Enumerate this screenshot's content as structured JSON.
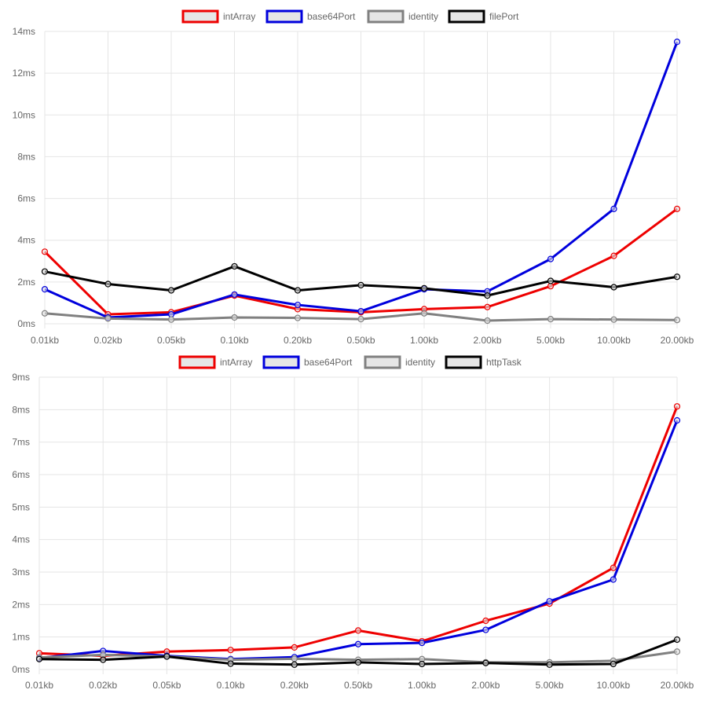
{
  "chart_data": [
    {
      "type": "line",
      "categories": [
        "0.01kb",
        "0.02kb",
        "0.05kb",
        "0.10kb",
        "0.20kb",
        "0.50kb",
        "1.00kb",
        "2.00kb",
        "5.00kb",
        "10.00kb",
        "20.00kb"
      ],
      "y_ticks": [
        "0ms",
        "2ms",
        "4ms",
        "6ms",
        "8ms",
        "10ms",
        "12ms",
        "14ms"
      ],
      "ylim": [
        0,
        14
      ],
      "grid": true,
      "legend_position": "top",
      "series": [
        {
          "name": "intArray",
          "color": "#ee0000",
          "values": [
            3.45,
            0.45,
            0.55,
            1.35,
            0.7,
            0.55,
            0.7,
            0.8,
            1.8,
            3.25,
            5.5
          ]
        },
        {
          "name": "base64Port",
          "color": "#0000dd",
          "values": [
            1.65,
            0.3,
            0.45,
            1.4,
            0.9,
            0.6,
            1.65,
            1.55,
            3.1,
            5.5,
            13.5
          ]
        },
        {
          "name": "identity",
          "color": "#808080",
          "values": [
            0.5,
            0.25,
            0.2,
            0.3,
            0.28,
            0.22,
            0.5,
            0.15,
            0.22,
            0.2,
            0.18
          ]
        },
        {
          "name": "filePort",
          "color": "#000000",
          "values": [
            2.5,
            1.9,
            1.6,
            2.75,
            1.6,
            1.85,
            1.7,
            1.35,
            2.05,
            1.75,
            2.25
          ]
        }
      ]
    },
    {
      "type": "line",
      "categories": [
        "0.01kb",
        "0.02kb",
        "0.05kb",
        "0.10kb",
        "0.20kb",
        "0.50kb",
        "1.00kb",
        "2.00kb",
        "5.00kb",
        "10.00kb",
        "20.00kb"
      ],
      "y_ticks": [
        "0ms",
        "1ms",
        "2ms",
        "3ms",
        "4ms",
        "5ms",
        "6ms",
        "7ms",
        "8ms",
        "9ms"
      ],
      "ylim": [
        0,
        9
      ],
      "grid": true,
      "legend_position": "top",
      "series": [
        {
          "name": "intArray",
          "color": "#ee0000",
          "values": [
            0.5,
            0.42,
            0.55,
            0.6,
            0.68,
            1.2,
            0.87,
            1.5,
            2.03,
            3.13,
            8.1
          ]
        },
        {
          "name": "base64Port",
          "color": "#0000dd",
          "values": [
            0.35,
            0.57,
            0.42,
            0.32,
            0.38,
            0.78,
            0.82,
            1.22,
            2.1,
            2.77,
            7.67
          ]
        },
        {
          "name": "identity",
          "color": "#808080",
          "values": [
            0.37,
            0.45,
            0.4,
            0.3,
            0.33,
            0.3,
            0.32,
            0.22,
            0.22,
            0.27,
            0.55
          ]
        },
        {
          "name": "httpTask",
          "color": "#000000",
          "values": [
            0.32,
            0.3,
            0.4,
            0.18,
            0.15,
            0.22,
            0.17,
            0.2,
            0.15,
            0.17,
            0.92
          ]
        }
      ]
    }
  ]
}
